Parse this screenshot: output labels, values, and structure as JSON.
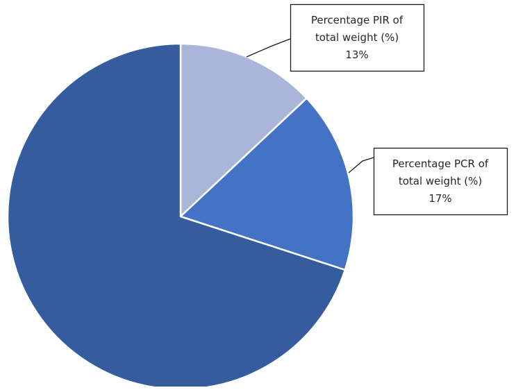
{
  "chart_data": {
    "type": "pie",
    "slices": [
      {
        "label_lines": [
          "Percentage PIR of",
          "total weight (%)"
        ],
        "value": 13,
        "value_label": "13%",
        "color": "#A9B6DA"
      },
      {
        "label_lines": [
          "Percentage PCR of",
          "total weight (%)"
        ],
        "value": 17,
        "value_label": "17%",
        "color": "#4472C4"
      },
      {
        "value": 70,
        "color": "#355C9E"
      }
    ],
    "start_angle": "12 o'clock",
    "direction": "clockwise",
    "legend": "none",
    "data_labels": "callouts"
  }
}
